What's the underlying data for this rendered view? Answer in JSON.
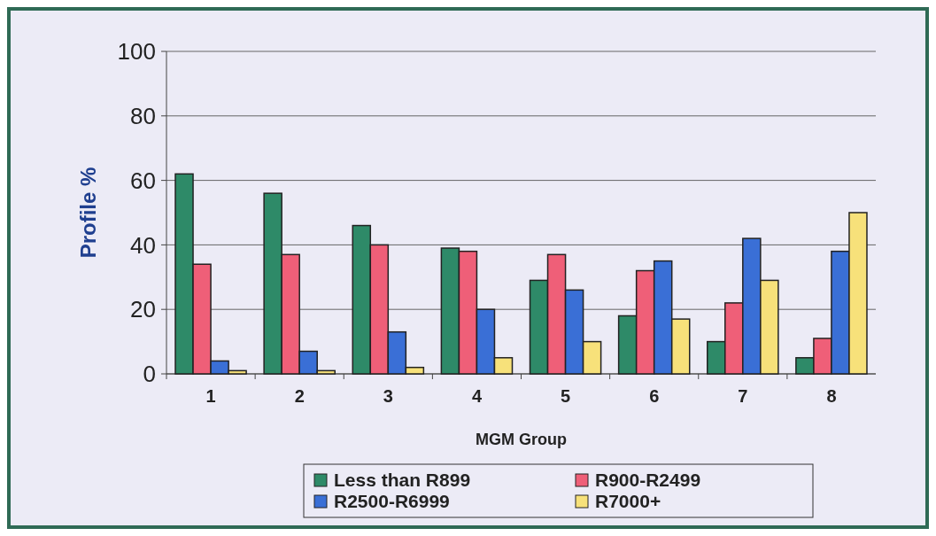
{
  "chart_data": {
    "type": "bar",
    "xlabel": "MGM Group",
    "ylabel": "Profile %",
    "categories": [
      "1",
      "2",
      "3",
      "4",
      "5",
      "6",
      "7",
      "8"
    ],
    "series": [
      {
        "name": "Less than R899",
        "color": "#2e8a68",
        "values": [
          62,
          56,
          46,
          39,
          29,
          18,
          10,
          5
        ]
      },
      {
        "name": "R900-R2499",
        "color": "#ef5f78",
        "values": [
          34,
          37,
          40,
          38,
          37,
          32,
          22,
          11
        ]
      },
      {
        "name": "R2500-R6999",
        "color": "#3a6fd6",
        "values": [
          4,
          7,
          13,
          20,
          26,
          35,
          42,
          38
        ]
      },
      {
        "name": "R7000+",
        "color": "#f7e17a",
        "values": [
          1,
          1,
          2,
          5,
          10,
          17,
          29,
          50
        ]
      }
    ],
    "ylim": [
      0,
      100
    ],
    "yticks": [
      0,
      20,
      40,
      60,
      80,
      100
    ],
    "grid": "y",
    "legend": "bottom"
  }
}
